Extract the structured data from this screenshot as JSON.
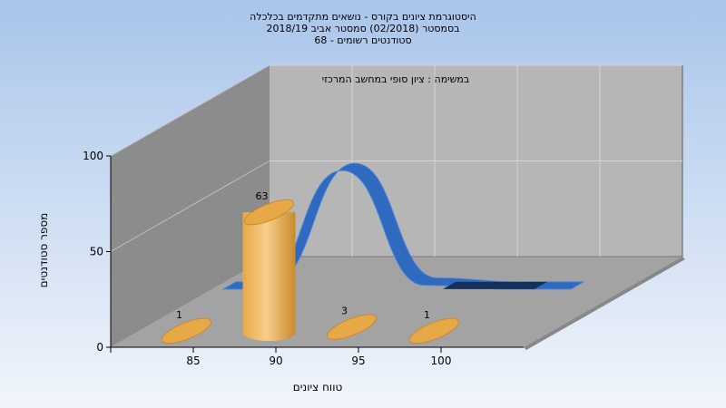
{
  "chart_data": {
    "type": "bar",
    "title_lines": [
      "היסטוגרמת ציונים בקורס - נושאים מתקדמים בכלכלה",
      "בסמסטר  (02/2018)  סמסטר אביב 2018/19",
      "סטודנטים רשומים - 68"
    ],
    "subtitle": "במשימה : ציון סופי במחשב המרכזי",
    "xlabel": "טווח ציונים",
    "ylabel": "מספר סטודנטים",
    "categories": [
      "85",
      "90",
      "95",
      "100"
    ],
    "values": [
      1,
      63,
      3,
      1
    ],
    "data_labels": [
      "1",
      "63",
      "3",
      "1"
    ],
    "yticks": [
      "0",
      "50",
      "100"
    ],
    "ylim": [
      0,
      100
    ],
    "style": "3d-cylinders-with-ribbon"
  },
  "colors": {
    "background_top": "#a9c5ea",
    "background_bottom": "#f1f5fb",
    "back_wall": "#b6b6b6",
    "side_wall": "#8c8c8c",
    "floor": "#a3a3a3",
    "bar_light": "#f6cf8a",
    "bar_mid": "#e7a847",
    "bar_dark": "#c98a2c",
    "ribbon": "#2f6ac0",
    "ribbon_light": "#4a84d6",
    "ribbon_shadow": "#17305a"
  }
}
